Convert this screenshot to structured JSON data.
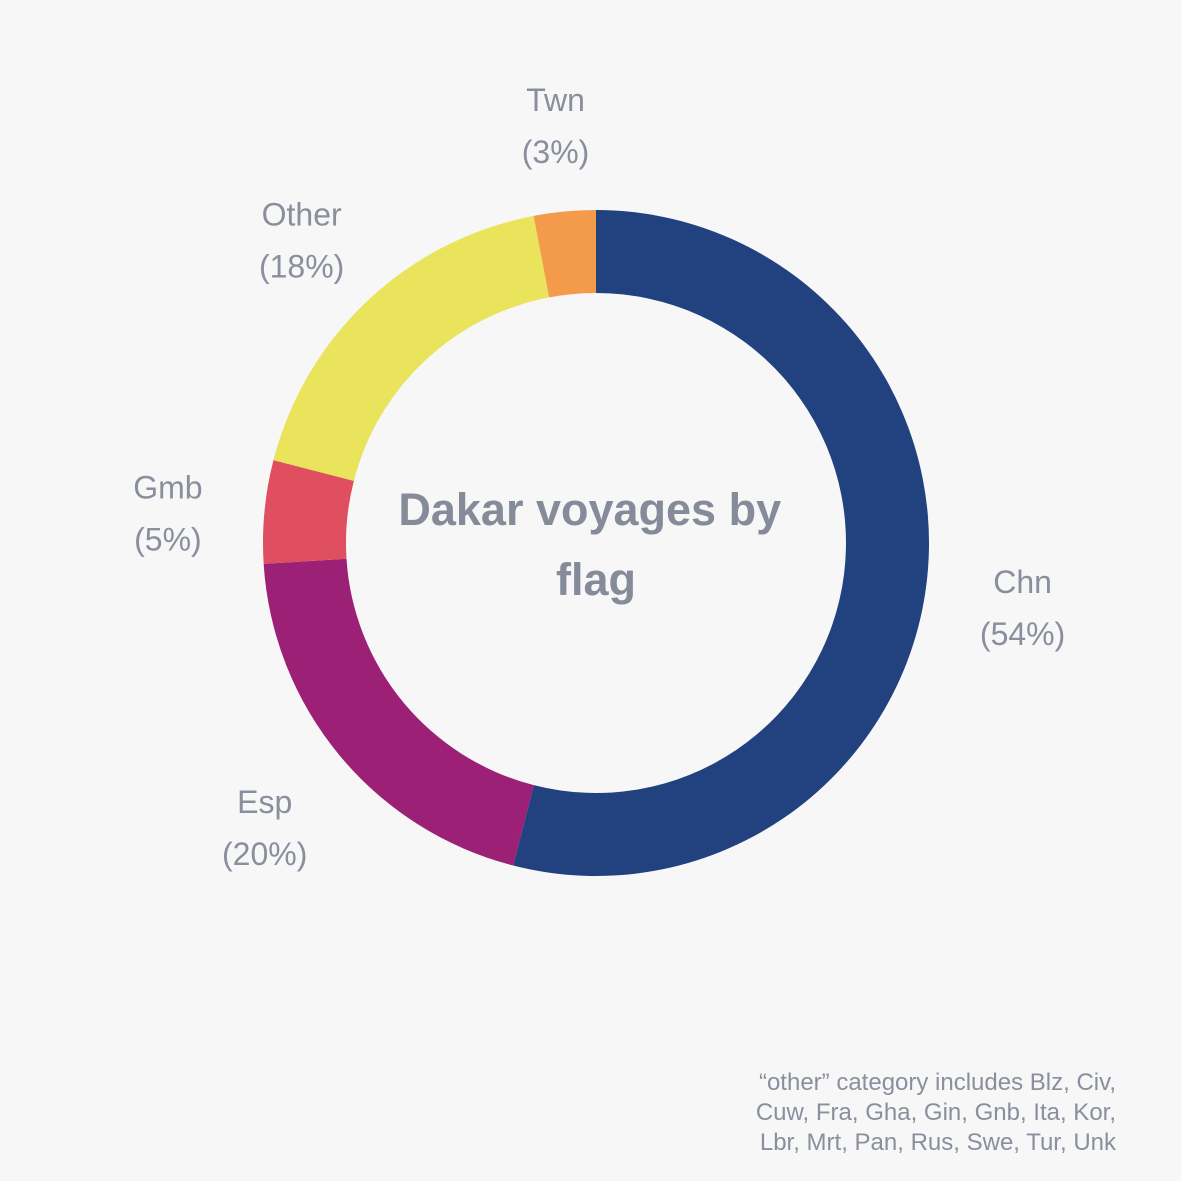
{
  "chart_data": {
    "type": "pie",
    "variant": "donut",
    "title": [
      "Dakar voyages by",
      "flag"
    ],
    "slices": [
      {
        "label": "Chn",
        "value": 54,
        "value_label": "(54%)",
        "color": "#21417f"
      },
      {
        "label": "Esp",
        "value": 20,
        "value_label": "(20%)",
        "color": "#9c2176"
      },
      {
        "label": "Gmb",
        "value": 5,
        "value_label": "(5%)",
        "color": "#e04f5f"
      },
      {
        "label": "Other",
        "value": 18,
        "value_label": "(18%)",
        "color": "#e9e45c"
      },
      {
        "label": "Twn",
        "value": 3,
        "value_label": "(3%)",
        "color": "#f49a4b"
      }
    ],
    "start": "top",
    "direction": "clockwise",
    "legend": "none",
    "footnote": [
      "“other” category includes Blz, Civ,",
      "Cuw, Fra, Gha, Gin, Gnb, Ita, Kor,",
      "Lbr, Mrt, Pan, Rus, Swe, Tur, Unk"
    ]
  }
}
